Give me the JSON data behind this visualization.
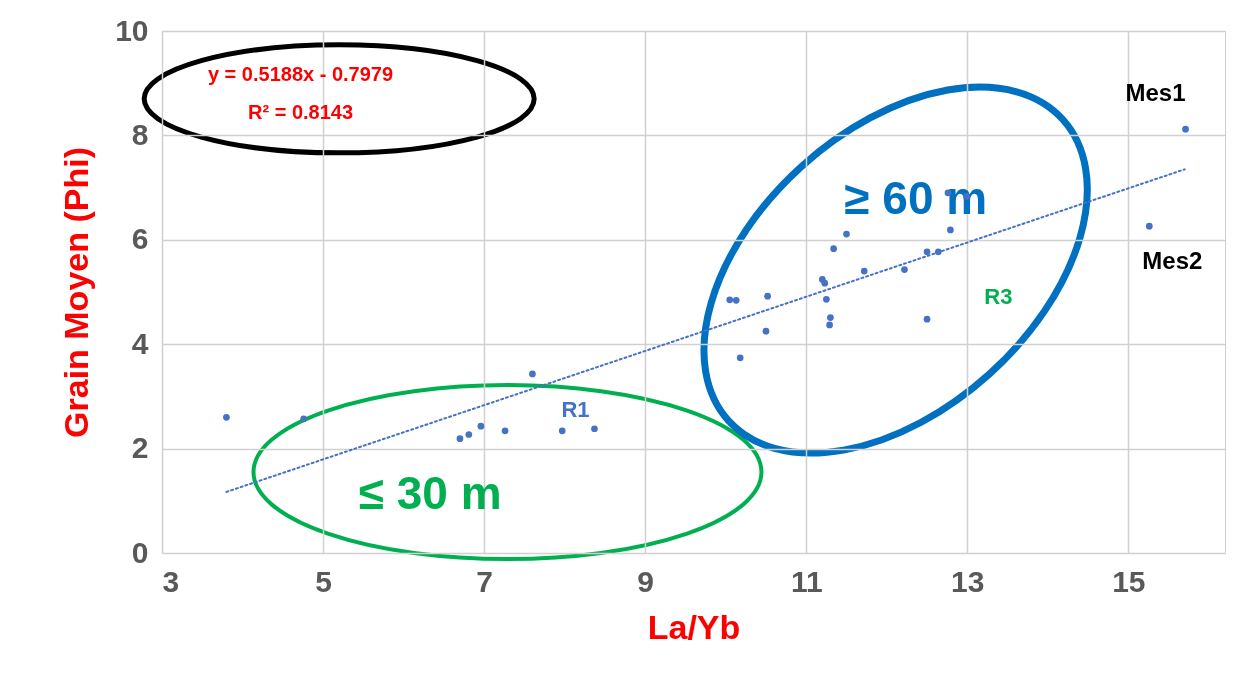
{
  "chart_data": {
    "type": "scatter",
    "xlabel": "La/Yb",
    "ylabel": "Grain Moyen (Phi)",
    "xlim": [
      3,
      16.2
    ],
    "xticks": [
      3,
      5,
      7,
      9,
      11,
      13,
      15
    ],
    "ylim": [
      0,
      10
    ],
    "yticks": [
      0,
      2,
      4,
      6,
      8,
      10
    ],
    "grid": true,
    "marker": "circle",
    "series": [
      {
        "color": "#4472c4",
        "x": [
          3.8,
          4.76,
          6.7,
          6.81,
          6.96,
          7.26,
          7.6,
          7.97,
          8.37,
          10.05,
          10.13,
          10.18,
          10.5,
          10.52,
          11.2,
          11.23,
          11.25,
          11.29,
          11.3,
          11.34,
          11.5,
          11.72,
          12.22,
          12.5,
          12.5,
          12.64,
          12.76,
          12.79,
          12.99,
          15.26,
          15.71
        ],
        "values": [
          2.6,
          2.57,
          2.19,
          2.27,
          2.43,
          2.34,
          3.43,
          2.34,
          2.38,
          4.85,
          4.84,
          3.74,
          4.25,
          4.92,
          5.24,
          5.17,
          4.86,
          4.37,
          4.51,
          5.83,
          6.11,
          5.4,
          5.43,
          4.48,
          5.77,
          5.77,
          6.9,
          6.19,
          6.83,
          6.26,
          8.12
        ]
      },
      {
        "type": "line",
        "color": "#4472c4",
        "line_style": "dotted",
        "marker": "none",
        "x": [
          3.8,
          15.7
        ],
        "values": [
          1.17,
          7.35
        ]
      }
    ],
    "annotations": [
      "y = 0.5188x - 0.7979",
      "R² = 0.8143",
      "≤ 30 m",
      "≥ 60 m",
      {
        "text": "R1",
        "x": 7.6,
        "y": 3.43
      },
      {
        "text": "R3",
        "x": 12.79,
        "y": 6.19
      },
      {
        "text": "Mes1",
        "x": 15.71,
        "y": 8.12
      },
      {
        "text": "Mes2",
        "x": 15.26,
        "y": 6.26
      }
    ]
  }
}
